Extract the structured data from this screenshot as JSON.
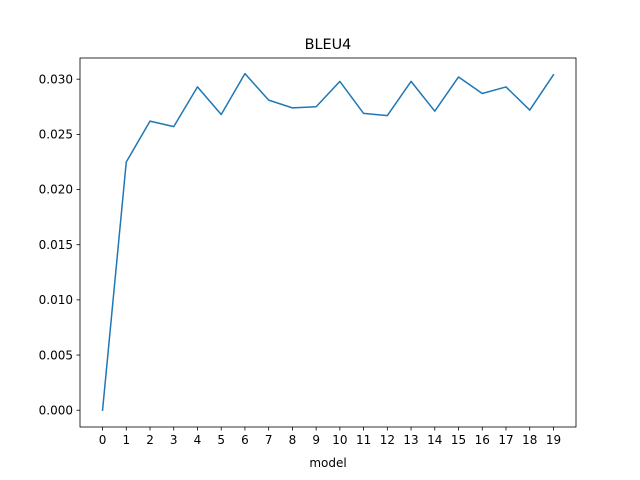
{
  "chart_data": {
    "type": "line",
    "title": "BLEU4",
    "xlabel": "model",
    "ylabel": "",
    "x": [
      0,
      1,
      2,
      3,
      4,
      5,
      6,
      7,
      8,
      9,
      10,
      11,
      12,
      13,
      14,
      15,
      16,
      17,
      18,
      19
    ],
    "series": [
      {
        "values": [
          0.0,
          0.0225,
          0.0262,
          0.0257,
          0.0293,
          0.0268,
          0.0305,
          0.0281,
          0.0274,
          0.0275,
          0.0298,
          0.0269,
          0.0267,
          0.0298,
          0.0271,
          0.0302,
          0.0287,
          0.0293,
          0.0272,
          0.0304
        ],
        "color": "#1f77b4"
      }
    ],
    "xlim": [
      -0.95,
      19.95
    ],
    "ylim": [
      -0.00152,
      0.03192
    ],
    "xticks": [
      "0",
      "1",
      "2",
      "3",
      "4",
      "5",
      "6",
      "7",
      "8",
      "9",
      "10",
      "11",
      "12",
      "13",
      "14",
      "15",
      "16",
      "17",
      "18",
      "19"
    ],
    "yticks": [
      "0.000",
      "0.005",
      "0.010",
      "0.015",
      "0.020",
      "0.025",
      "0.030"
    ],
    "grid": false,
    "legend": "none"
  }
}
